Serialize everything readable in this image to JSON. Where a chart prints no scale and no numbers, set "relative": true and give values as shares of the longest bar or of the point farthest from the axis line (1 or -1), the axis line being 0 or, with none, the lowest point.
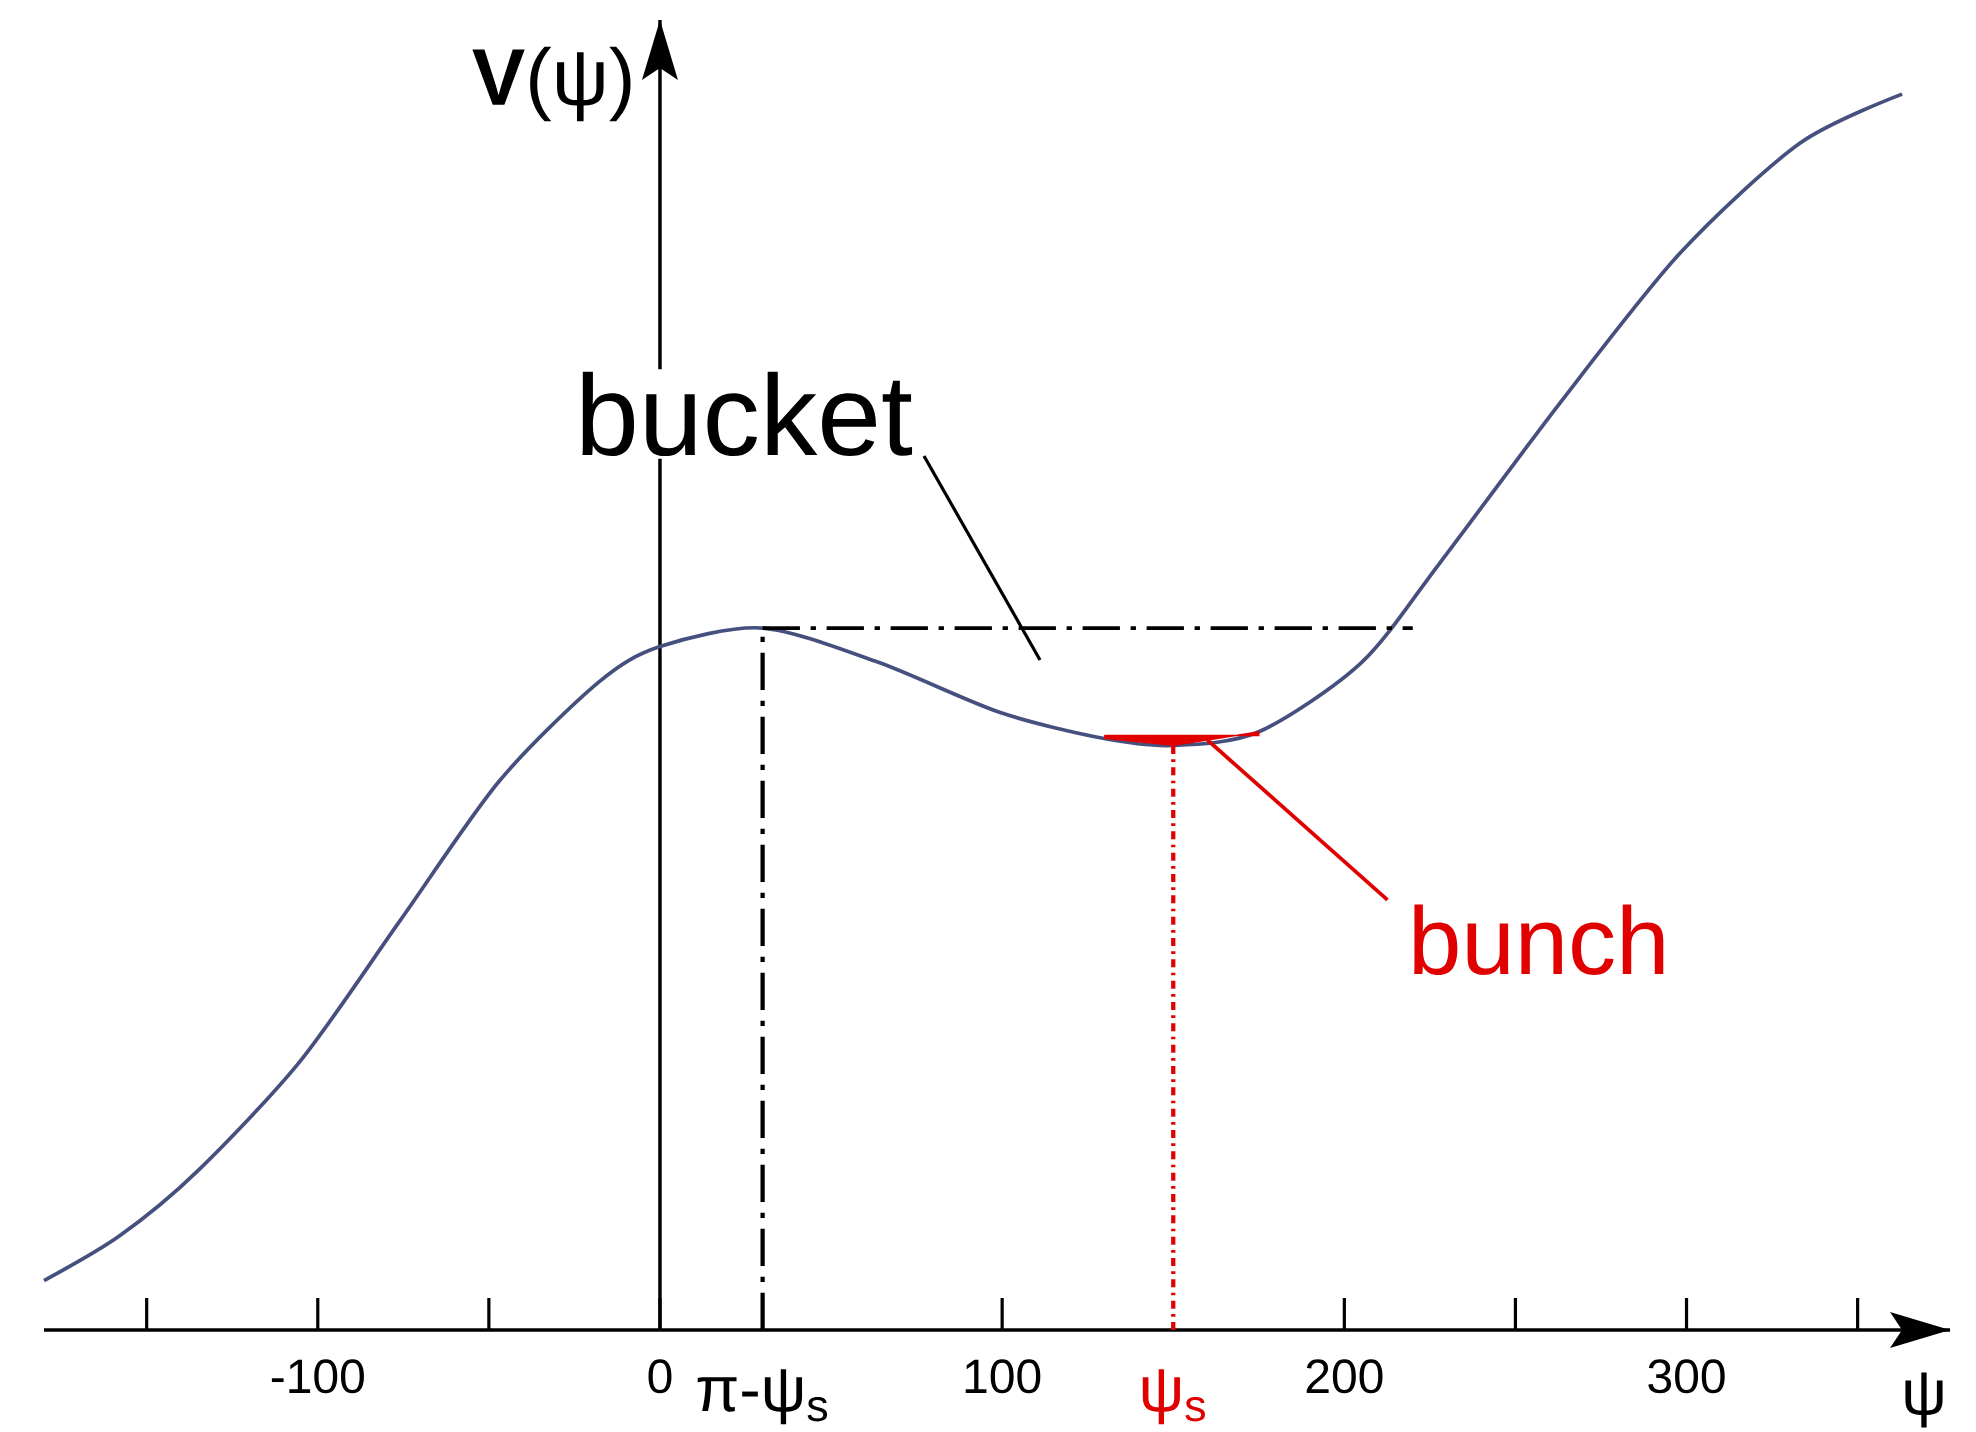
{
  "chart_data": {
    "type": "line",
    "relative": true,
    "xlabel": "ψ",
    "ylabel": "**V**(ψ)",
    "xlim": [
      -180,
      377
    ],
    "xticks": [
      {
        "value": -150,
        "label": null
      },
      -100,
      {
        "value": -50,
        "label": null
      },
      0,
      100,
      200,
      {
        "value": 250,
        "label": null
      },
      300,
      {
        "value": 350,
        "label": null
      }
    ],
    "series": [
      {
        "color": "#46507e",
        "x": [
          -180,
          -158,
          -135,
          -105,
          -76,
          -47,
          -18,
          0,
          30,
          64,
          99,
          129,
          150,
          175,
          205,
          228,
          263,
          298,
          333,
          363
        ],
        "values": [
          0.04,
          0.076,
          0.129,
          0.218,
          0.331,
          0.444,
          0.524,
          0.553,
          0.568,
          0.54,
          0.5,
          0.479,
          0.473,
          0.484,
          0.54,
          0.621,
          0.75,
          0.871,
          0.96,
          1
        ]
      },
      {
        "color": "#000000",
        "line_style": "dashed",
        "x": [
          30,
          220
        ],
        "values": [
          0.568,
          0.568
        ]
      },
      {
        "type": "area",
        "name": "bunch",
        "color": "#e00000",
        "x": [
          130,
          140,
          150,
          160,
          175
        ],
        "values": [
          0.481,
          0.481,
          0.481,
          0.481,
          0.481
        ]
      }
    ],
    "ref_lines": [
      {
        "axis": "x",
        "value": 30,
        "label": "π-ψ$_{s}$",
        "color": "#000000",
        "line_style": "dashed"
      },
      {
        "axis": "x",
        "value": 150,
        "label": "ψ$_{s}$",
        "color": "#e00000",
        "line_style": "dotted"
      }
    ],
    "annotations": [
      "bucket"
    ]
  }
}
